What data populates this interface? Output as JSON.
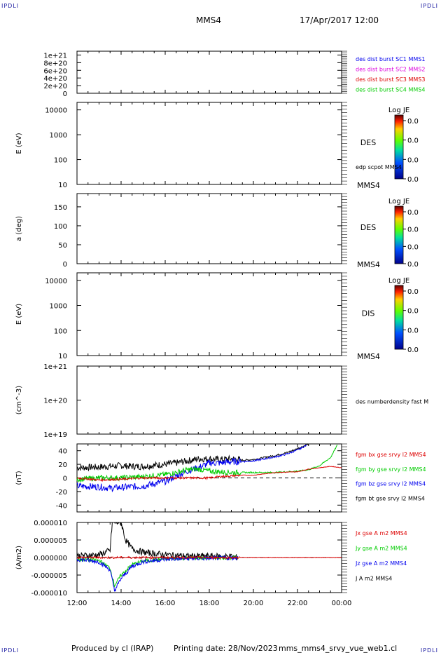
{
  "corner_labels": {
    "tl": "IPDLI",
    "tr": "IPDLI",
    "bl": "IPDLI",
    "br": "IPDLI"
  },
  "header": {
    "spacecraft": "MMS4",
    "date": "17/Apr/2017 12:00"
  },
  "footer": {
    "produced": "Produced by cl (IRAP)",
    "printing": "Printing date: 28/Nov/2023",
    "file": "mms_mms4_srvy_vue_web1.cl"
  },
  "colorbar_label": "Log JE",
  "colorbar_ticks": [
    "0.0",
    "0.0",
    "0.0",
    "0.0"
  ],
  "colors": {
    "red": "#dd0000",
    "magenta": "#dd00dd",
    "blue": "#0000ee",
    "green": "#00cc00",
    "black": "#000000"
  },
  "chart_data": [
    {
      "type": "line",
      "ylabel": "",
      "yticks": [
        "1e+21",
        "8e+20",
        "6e+20",
        "4e+20",
        "2e+20",
        "0"
      ],
      "ylim": [
        0,
        1.1e+21
      ],
      "legend": [
        {
          "name": "des dist burst SC1 MMS1",
          "color": "#0000ee"
        },
        {
          "name": "des dist burst SC2 MMS2",
          "color": "#dd00dd"
        },
        {
          "name": "des dist burst SC3 MMS3",
          "color": "#dd0000"
        },
        {
          "name": "des dist burst SC4 MMS4",
          "color": "#00cc00"
        }
      ],
      "series": []
    },
    {
      "type": "heatmap",
      "ylabel": "E (eV)",
      "yticks": [
        "10000",
        "1000",
        "100",
        "10"
      ],
      "yscale": "log",
      "ylim": [
        10,
        20000
      ],
      "right_labels": [
        "DES",
        "edp scpot MMS4",
        "MMS4"
      ],
      "colorbar": true
    },
    {
      "type": "heatmap",
      "ylabel": "a (deg)",
      "yticks": [
        "150",
        "100",
        "50",
        "0"
      ],
      "ylim": [
        0,
        185
      ],
      "right_labels": [
        "DES",
        "MMS4"
      ],
      "colorbar": true
    },
    {
      "type": "heatmap",
      "ylabel": "E (eV)",
      "yticks": [
        "10000",
        "1000",
        "100",
        "10"
      ],
      "yscale": "log",
      "ylim": [
        10,
        20000
      ],
      "right_labels": [
        "DIS",
        "MMS4"
      ],
      "colorbar": true
    },
    {
      "type": "line",
      "ylabel": "(cm^-3)",
      "yticks": [
        "1e+21",
        "1e+20",
        "1e+19"
      ],
      "yscale": "log",
      "ylim": [
        1e+19,
        1e+21
      ],
      "right_labels": [
        "des numberdensity fast M"
      ],
      "series": []
    },
    {
      "type": "line",
      "ylabel": "(nT)",
      "yticks": [
        "40",
        "20",
        "0",
        "-20",
        "-40"
      ],
      "ylim": [
        -50,
        50
      ],
      "legend": [
        {
          "name": "fgm bx gse srvy l2 MMS4",
          "color": "#dd0000"
        },
        {
          "name": "fgm by gse srvy l2 MMS4",
          "color": "#00cc00"
        },
        {
          "name": "fgm bz gse srvy l2 MMS4",
          "color": "#0000ee"
        },
        {
          "name": "fgm bt gse srvy l2 MMS4",
          "color": "#000000"
        }
      ],
      "series": [
        {
          "color": "#000000",
          "noise": 5,
          "x": [
            12,
            13,
            13.5,
            14,
            14.5,
            15,
            16,
            16.5,
            17,
            17.5,
            18,
            18.5,
            19,
            19.5,
            20,
            20.5,
            21,
            21.5,
            22,
            22.5
          ],
          "y": [
            15,
            16,
            17,
            18,
            17,
            17,
            20,
            22,
            25,
            28,
            28,
            27,
            28,
            26,
            27,
            30,
            33,
            37,
            43,
            50
          ]
        },
        {
          "color": "#0000ee",
          "noise": 5,
          "x": [
            12,
            13,
            13.5,
            14,
            14.5,
            15,
            16,
            16.5,
            17,
            17.5,
            18,
            18.5,
            19,
            19.5,
            20,
            20.5,
            21,
            21.5,
            22,
            22.4
          ],
          "y": [
            -12,
            -13,
            -15,
            -14,
            -13,
            -12,
            -5,
            3,
            10,
            15,
            22,
            22,
            24,
            24,
            25,
            28,
            31,
            35,
            41,
            48
          ]
        },
        {
          "color": "#00cc00",
          "noise": 4,
          "x": [
            12,
            13,
            14,
            15,
            16,
            16.5,
            17,
            17.5,
            18,
            18.5,
            19,
            20,
            21,
            22,
            22.5,
            23,
            23.5,
            23.8
          ],
          "y": [
            -2,
            0,
            0,
            2,
            5,
            8,
            12,
            13,
            10,
            9,
            8,
            8,
            8,
            10,
            12,
            18,
            30,
            48
          ]
        },
        {
          "color": "#dd0000",
          "noise": 1.5,
          "x": [
            12,
            13,
            14,
            15,
            16,
            17,
            18,
            18.5,
            19,
            19.5,
            20,
            21,
            22,
            22.5,
            23,
            23.5,
            24
          ],
          "y": [
            0,
            -3,
            -2,
            0,
            0,
            0,
            0,
            2,
            3,
            4,
            4,
            8,
            9,
            13,
            15,
            17,
            15
          ]
        }
      ]
    },
    {
      "type": "line",
      "ylabel": "(A/m2)",
      "yticks": [
        "0.000010",
        "0.000005",
        "0.000000",
        "-0.000005",
        "-0.000010"
      ],
      "ylim": [
        -1e-05,
        1e-05
      ],
      "xticks": [
        "12:00",
        "14:00",
        "16:00",
        "18:00",
        "20:00",
        "22:00",
        "00:00"
      ],
      "legend": [
        {
          "name": "Jx gse A m2 MMS4",
          "color": "#dd0000"
        },
        {
          "name": "Jy gse A m2 MMS4",
          "color": "#00cc00"
        },
        {
          "name": "Jz gse A m2 MMS4",
          "color": "#0000ee"
        },
        {
          "name": "J A m2 MMS4",
          "color": "#000000"
        }
      ],
      "series": [
        {
          "color": "#000000",
          "noise": 9e-07,
          "x": [
            12,
            13,
            13.5,
            13.6,
            14,
            14.2,
            14.5,
            15,
            16,
            17,
            18,
            19,
            19.3
          ],
          "y": [
            5e-07,
            8e-07,
            2e-06,
            1e-05,
            1e-05,
            5e-06,
            2.5e-06,
            1.5e-06,
            8e-07,
            4e-07,
            4e-07,
            3e-07,
            0
          ]
        },
        {
          "color": "#00cc00",
          "noise": 5e-07,
          "x": [
            12,
            13,
            13.5,
            13.7,
            14,
            14.5,
            15,
            16,
            17,
            18,
            19.3
          ],
          "y": [
            -5e-07,
            -8e-07,
            -3e-06,
            -8e-06,
            -5e-06,
            -2e-06,
            -1e-06,
            -4e-07,
            -2e-07,
            -1e-07,
            0
          ]
        },
        {
          "color": "#0000ee",
          "noise": 6e-07,
          "x": [
            12,
            13,
            13.5,
            13.7,
            14,
            14.5,
            15,
            16,
            17,
            18,
            19.3
          ],
          "y": [
            -5e-07,
            -1.2e-06,
            -3.5e-06,
            -9.5e-06,
            -6e-06,
            -2.5e-06,
            -1.2e-06,
            -5e-07,
            -3e-07,
            -2e-07,
            0
          ]
        },
        {
          "color": "#dd0000",
          "noise": 3e-07,
          "x": [
            12,
            14,
            16,
            18,
            20,
            22,
            24
          ],
          "y": [
            0,
            0,
            0,
            0,
            0,
            0,
            0
          ]
        }
      ]
    }
  ]
}
